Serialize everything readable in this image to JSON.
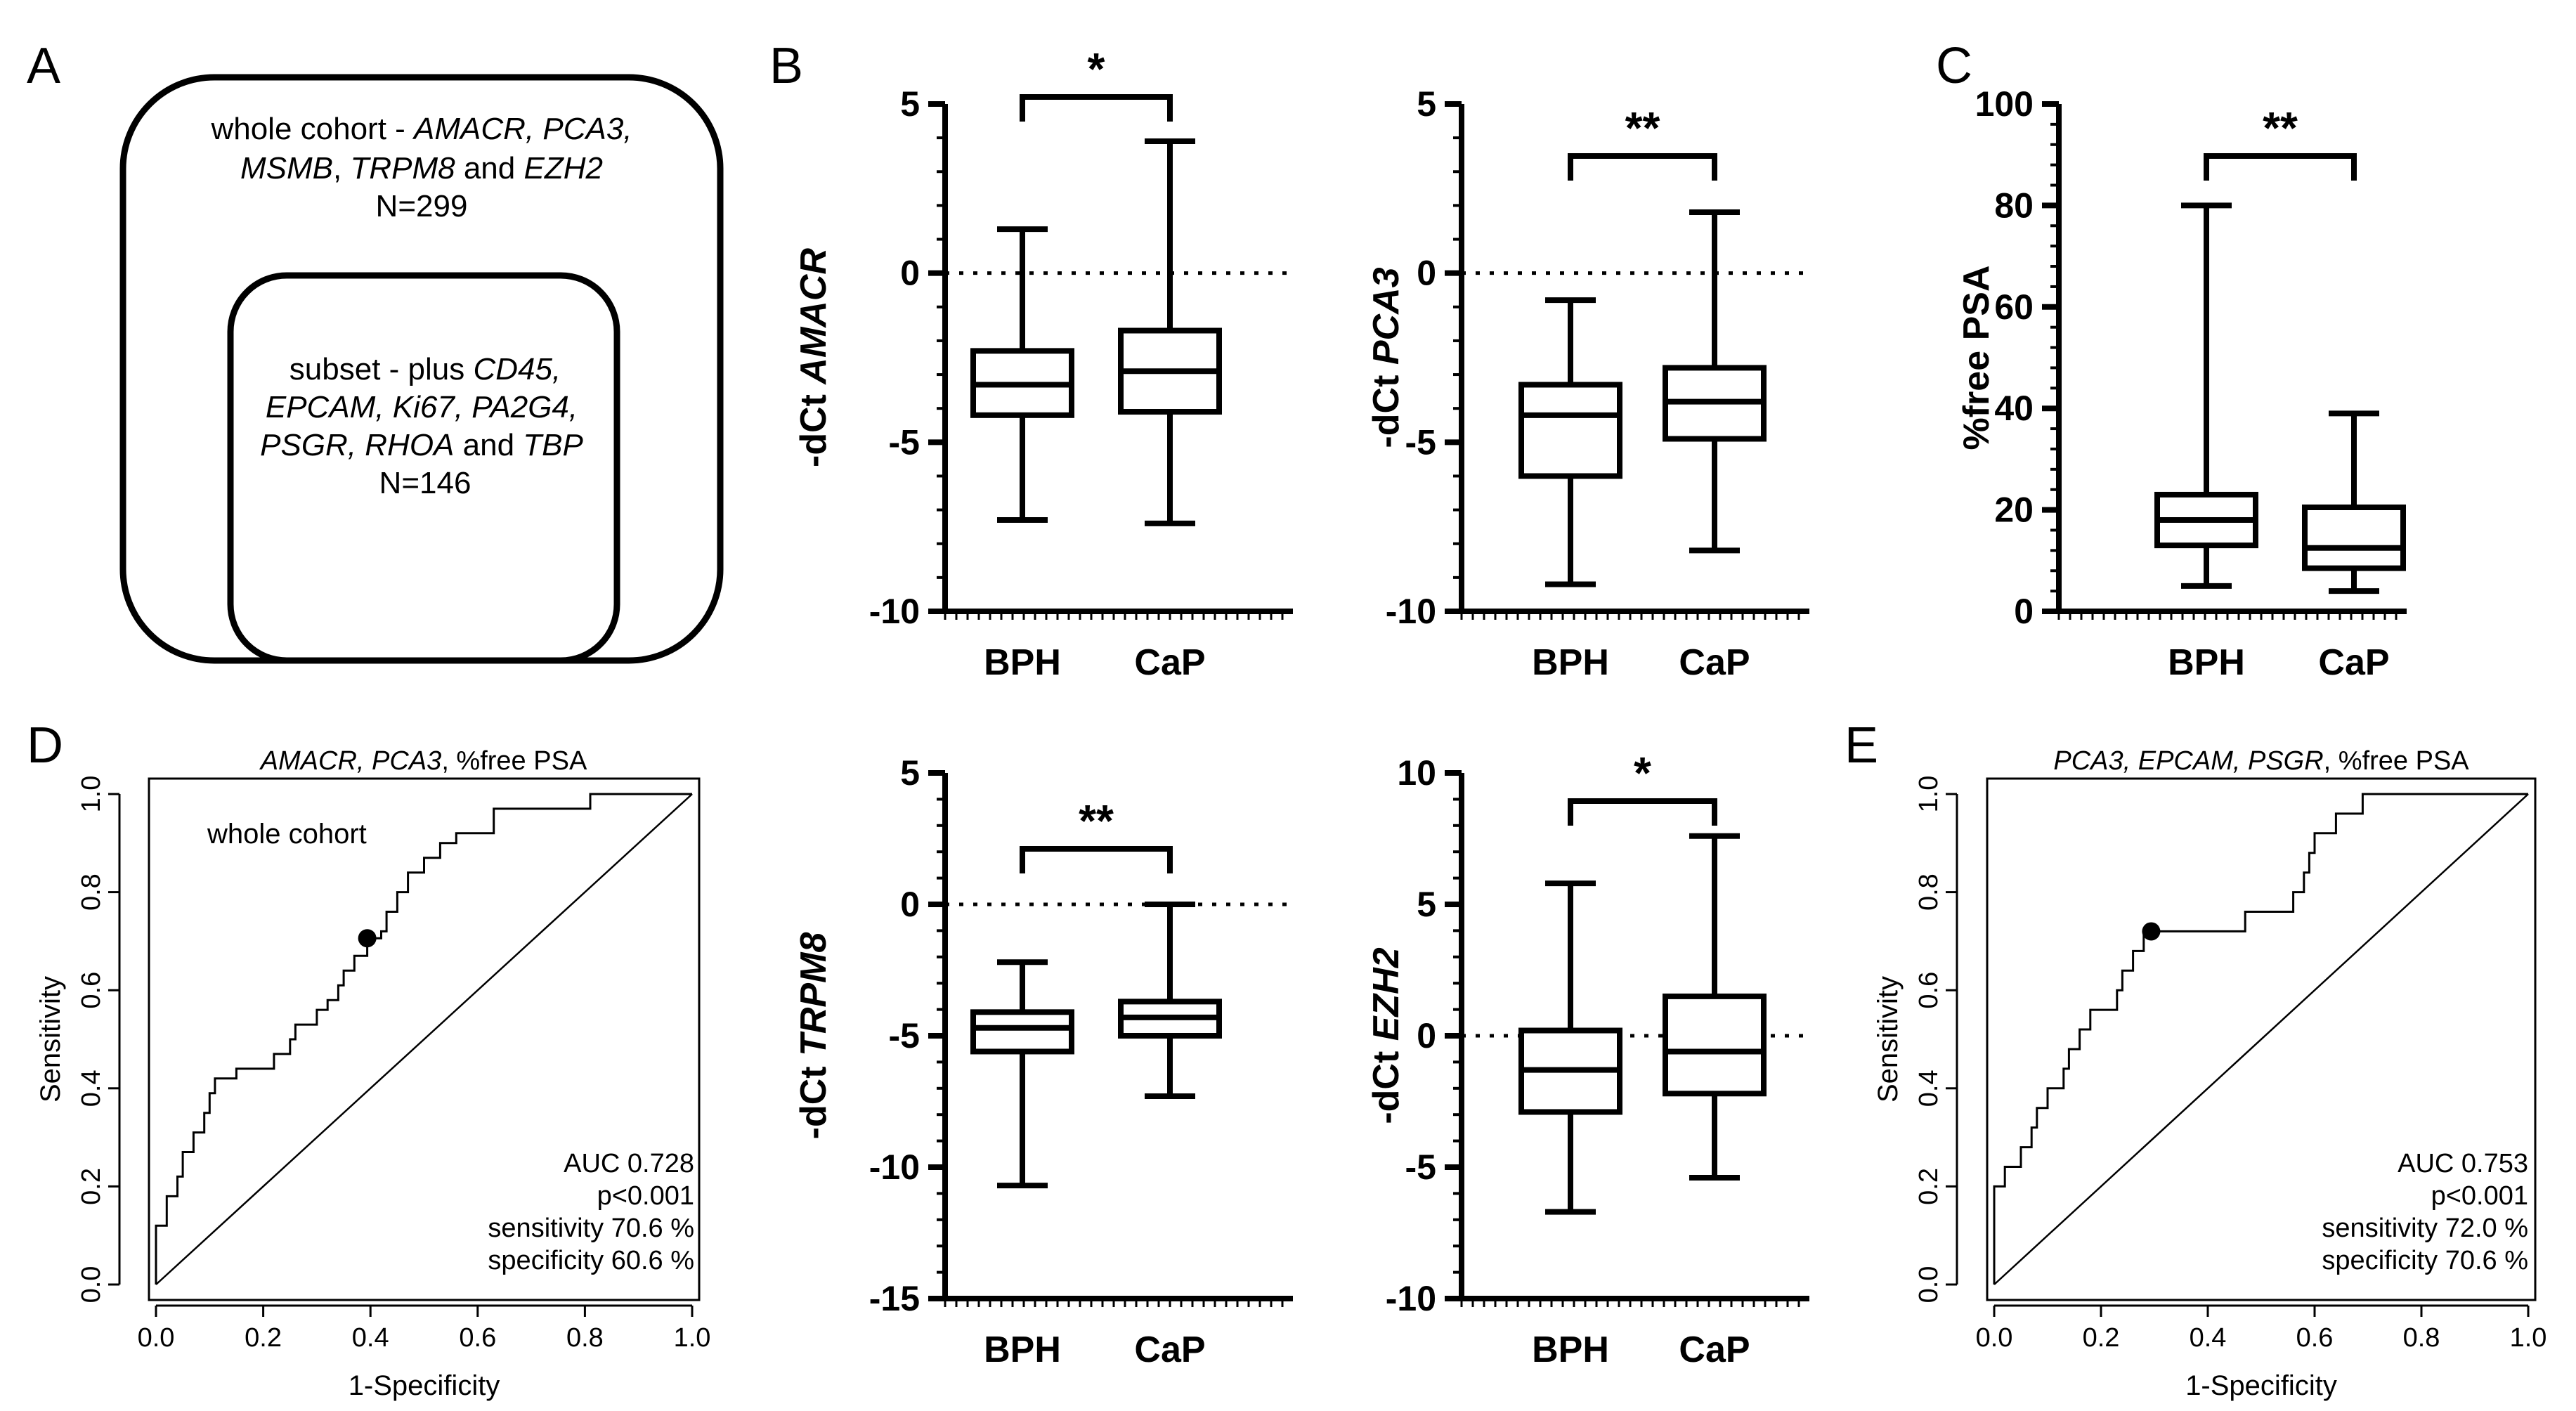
{
  "panels": {
    "A": {
      "letter": "A",
      "outer_box": {
        "line1_prefix": "whole cohort - ",
        "line1_genes": "AMACR, PCA3,",
        "line2_genes_a": "MSMB",
        "line2_sep": ", ",
        "line2_genes_b": "TRPM8",
        "line2_and": " and ",
        "line2_genes_c": "EZH2",
        "n": "N=299"
      },
      "inner_box": {
        "line1_prefix": "subset - plus ",
        "line1_genes": "CD45,",
        "line2_genes": "EPCAM, Ki67, PA2G4,",
        "line3_genes_a": "PSGR, RHOA",
        "line3_and": " and ",
        "line3_genes_b": "TBP",
        "n": "N=146"
      }
    },
    "B_letter": "B",
    "C_letter": "C",
    "D_letter": "D",
    "E_letter": "E"
  },
  "chart_data": [
    {
      "id": "amacr",
      "type": "box",
      "panel": "B",
      "ylabel_prefix": "-dCt ",
      "ylabel_gene": "AMACR",
      "ylim": [
        -10,
        5
      ],
      "yticks": [
        5,
        0,
        -5,
        -10
      ],
      "reference_line": 0,
      "categories": [
        "BPH",
        "CaP"
      ],
      "boxes": [
        {
          "group": "BPH",
          "min": -7.3,
          "q1": -4.2,
          "median": -3.3,
          "q3": -2.3,
          "max": 1.3
        },
        {
          "group": "CaP",
          "min": -7.4,
          "q1": -4.1,
          "median": -2.9,
          "q3": -1.7,
          "max": 3.9
        }
      ],
      "significance": "*"
    },
    {
      "id": "pca3",
      "type": "box",
      "panel": "B",
      "ylabel_prefix": "-dCt ",
      "ylabel_gene": "PCA3",
      "ylim": [
        -10,
        5
      ],
      "yticks": [
        5,
        0,
        -5,
        -10
      ],
      "reference_line": 0,
      "categories": [
        "BPH",
        "CaP"
      ],
      "boxes": [
        {
          "group": "BPH",
          "min": -9.2,
          "q1": -6.0,
          "median": -4.2,
          "q3": -3.3,
          "max": -0.8
        },
        {
          "group": "CaP",
          "min": -8.2,
          "q1": -4.9,
          "median": -3.8,
          "q3": -2.8,
          "max": 1.8
        }
      ],
      "significance": "**"
    },
    {
      "id": "freepsa",
      "type": "box",
      "panel": "C",
      "ylabel_prefix": "",
      "ylabel_gene": "%free PSA",
      "ylim": [
        0,
        100
      ],
      "yticks": [
        100,
        80,
        60,
        40,
        20,
        0
      ],
      "reference_line": null,
      "categories": [
        "BPH",
        "CaP"
      ],
      "boxes": [
        {
          "group": "BPH",
          "min": 5,
          "q1": 13,
          "median": 18,
          "q3": 23,
          "max": 80
        },
        {
          "group": "CaP",
          "min": 4,
          "q1": 8.5,
          "median": 12.5,
          "q3": 20.5,
          "max": 39
        }
      ],
      "significance": "**"
    },
    {
      "id": "trpm8",
      "type": "box",
      "panel": "D",
      "ylabel_prefix": "-dCt ",
      "ylabel_gene": "TRPM8",
      "ylim": [
        -15,
        5
      ],
      "yticks": [
        5,
        0,
        -5,
        -10,
        -15
      ],
      "reference_line": 0,
      "categories": [
        "BPH",
        "CaP"
      ],
      "boxes": [
        {
          "group": "BPH",
          "min": -10.7,
          "q1": -5.6,
          "median": -4.7,
          "q3": -4.1,
          "max": -2.2
        },
        {
          "group": "CaP",
          "min": -7.3,
          "q1": -5.0,
          "median": -4.3,
          "q3": -3.7,
          "max": 0
        }
      ],
      "significance": "**"
    },
    {
      "id": "ezh2",
      "type": "box",
      "panel": "D",
      "ylabel_prefix": "-dCt ",
      "ylabel_gene": "EZH2",
      "ylim": [
        -10,
        10
      ],
      "yticks": [
        10,
        5,
        0,
        -5,
        -10
      ],
      "reference_line": 0,
      "categories": [
        "BPH",
        "CaP"
      ],
      "boxes": [
        {
          "group": "BPH",
          "min": -6.7,
          "q1": -2.9,
          "median": -1.3,
          "q3": 0.2,
          "max": 5.8
        },
        {
          "group": "CaP",
          "min": -5.4,
          "q1": -2.2,
          "median": -0.6,
          "q3": 1.5,
          "max": 7.6
        }
      ],
      "significance": "*"
    },
    {
      "id": "roc_d",
      "type": "line",
      "panel": "D",
      "title_genes": "AMACR, PCA3",
      "title_rest": ", %free PSA",
      "annotation_topleft": "whole cohort",
      "xlabel": "1-Specificity",
      "ylabel": "Sensitivity",
      "xlim": [
        0,
        1
      ],
      "ylim": [
        0,
        1
      ],
      "ticks": [
        "0.0",
        "0.2",
        "0.4",
        "0.6",
        "0.8",
        "1.0"
      ],
      "stats": [
        "AUC 0.728",
        "p<0.001",
        "sensitivity 70.6 %",
        "specificity 60.6 %"
      ],
      "point": {
        "x": 0.394,
        "y": 0.706
      },
      "curve": [
        [
          0,
          0
        ],
        [
          0,
          0.12
        ],
        [
          0.02,
          0.12
        ],
        [
          0.02,
          0.18
        ],
        [
          0.04,
          0.18
        ],
        [
          0.04,
          0.22
        ],
        [
          0.05,
          0.22
        ],
        [
          0.05,
          0.27
        ],
        [
          0.07,
          0.27
        ],
        [
          0.07,
          0.31
        ],
        [
          0.09,
          0.31
        ],
        [
          0.09,
          0.35
        ],
        [
          0.1,
          0.35
        ],
        [
          0.1,
          0.39
        ],
        [
          0.11,
          0.39
        ],
        [
          0.11,
          0.42
        ],
        [
          0.15,
          0.42
        ],
        [
          0.15,
          0.44
        ],
        [
          0.22,
          0.44
        ],
        [
          0.22,
          0.47
        ],
        [
          0.25,
          0.47
        ],
        [
          0.25,
          0.5
        ],
        [
          0.26,
          0.5
        ],
        [
          0.26,
          0.53
        ],
        [
          0.3,
          0.53
        ],
        [
          0.3,
          0.56
        ],
        [
          0.32,
          0.56
        ],
        [
          0.32,
          0.58
        ],
        [
          0.34,
          0.58
        ],
        [
          0.34,
          0.61
        ],
        [
          0.35,
          0.61
        ],
        [
          0.35,
          0.64
        ],
        [
          0.37,
          0.64
        ],
        [
          0.37,
          0.67
        ],
        [
          0.394,
          0.67
        ],
        [
          0.394,
          0.706
        ],
        [
          0.42,
          0.706
        ],
        [
          0.42,
          0.72
        ],
        [
          0.43,
          0.72
        ],
        [
          0.43,
          0.76
        ],
        [
          0.45,
          0.76
        ],
        [
          0.45,
          0.8
        ],
        [
          0.47,
          0.8
        ],
        [
          0.47,
          0.84
        ],
        [
          0.5,
          0.84
        ],
        [
          0.5,
          0.87
        ],
        [
          0.53,
          0.87
        ],
        [
          0.53,
          0.9
        ],
        [
          0.56,
          0.9
        ],
        [
          0.56,
          0.92
        ],
        [
          0.63,
          0.92
        ],
        [
          0.63,
          0.97
        ],
        [
          0.81,
          0.97
        ],
        [
          0.81,
          1.0
        ],
        [
          1.0,
          1.0
        ]
      ]
    },
    {
      "id": "roc_e",
      "type": "line",
      "panel": "E",
      "title_genes": "PCA3, EPCAM, PSGR",
      "title_rest": ", %free PSA",
      "xlabel": "1-Specificity",
      "ylabel": "Sensitivity",
      "xlim": [
        0,
        1
      ],
      "ylim": [
        0,
        1
      ],
      "ticks": [
        "0.0",
        "0.2",
        "0.4",
        "0.6",
        "0.8",
        "1.0"
      ],
      "stats": [
        "AUC 0.753",
        "p<0.001",
        "sensitivity 72.0 %",
        "specificity 70.6 %"
      ],
      "point": {
        "x": 0.294,
        "y": 0.72
      },
      "curve": [
        [
          0,
          0
        ],
        [
          0,
          0.2
        ],
        [
          0.02,
          0.2
        ],
        [
          0.02,
          0.24
        ],
        [
          0.05,
          0.24
        ],
        [
          0.05,
          0.28
        ],
        [
          0.07,
          0.28
        ],
        [
          0.07,
          0.32
        ],
        [
          0.08,
          0.32
        ],
        [
          0.08,
          0.36
        ],
        [
          0.1,
          0.36
        ],
        [
          0.1,
          0.4
        ],
        [
          0.13,
          0.4
        ],
        [
          0.13,
          0.44
        ],
        [
          0.14,
          0.44
        ],
        [
          0.14,
          0.48
        ],
        [
          0.16,
          0.48
        ],
        [
          0.16,
          0.52
        ],
        [
          0.18,
          0.52
        ],
        [
          0.18,
          0.56
        ],
        [
          0.23,
          0.56
        ],
        [
          0.23,
          0.6
        ],
        [
          0.24,
          0.6
        ],
        [
          0.24,
          0.64
        ],
        [
          0.26,
          0.64
        ],
        [
          0.26,
          0.68
        ],
        [
          0.28,
          0.68
        ],
        [
          0.28,
          0.72
        ],
        [
          0.47,
          0.72
        ],
        [
          0.47,
          0.76
        ],
        [
          0.56,
          0.76
        ],
        [
          0.56,
          0.8
        ],
        [
          0.58,
          0.8
        ],
        [
          0.58,
          0.84
        ],
        [
          0.59,
          0.84
        ],
        [
          0.59,
          0.88
        ],
        [
          0.6,
          0.88
        ],
        [
          0.6,
          0.92
        ],
        [
          0.64,
          0.92
        ],
        [
          0.64,
          0.96
        ],
        [
          0.69,
          0.96
        ],
        [
          0.69,
          1.0
        ],
        [
          1.0,
          1.0
        ]
      ]
    }
  ]
}
